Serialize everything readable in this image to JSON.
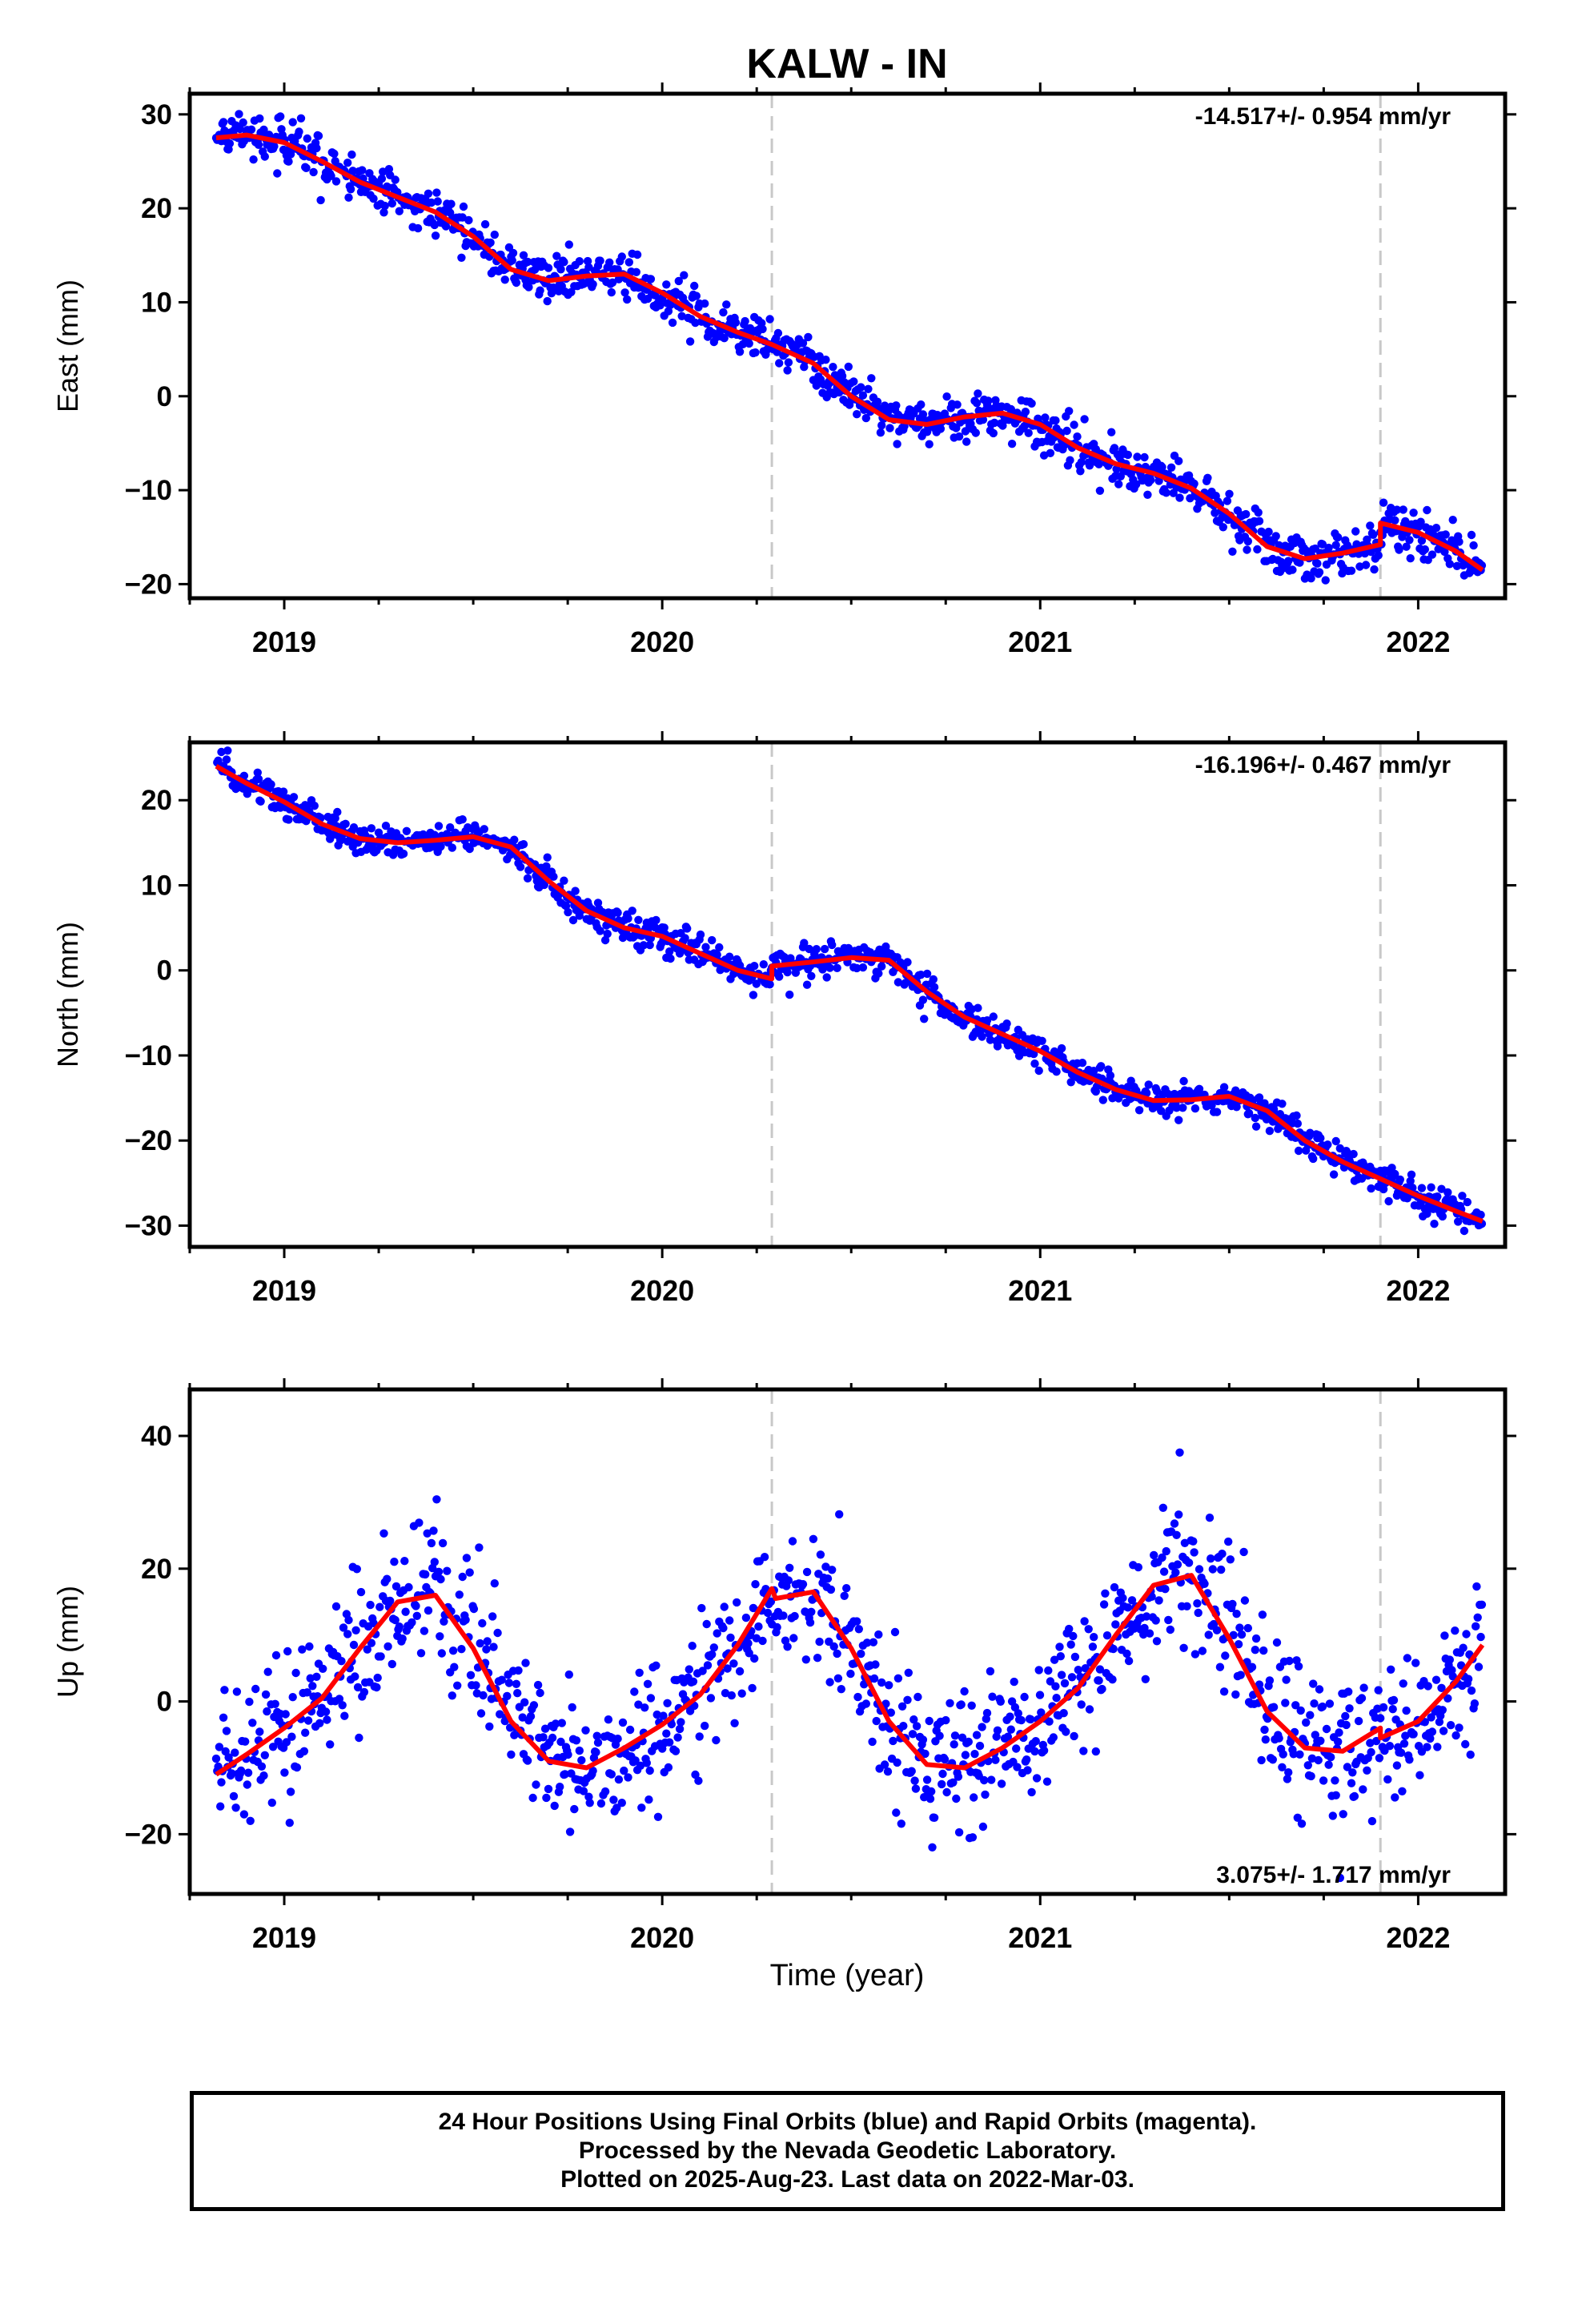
{
  "title": "KALW - IN",
  "xlabel": "Time (year)",
  "colors": {
    "data": "#0000ff",
    "model": "#ff0000",
    "event_line": "#c8c8c8",
    "axis": "#000000"
  },
  "footer": {
    "line1": "24 Hour Positions Using Final Orbits (blue) and Rapid Orbits (magenta).",
    "line2": "Processed by the Nevada Geodetic Laboratory.",
    "line3": "Plotted on 2025-Aug-23. Last data on 2022-Mar-03."
  },
  "chart_data": [
    {
      "type": "scatter",
      "component": "East",
      "ylabel": "East (mm)",
      "rate_text": "-14.517+/- 0.954 mm/yr",
      "rate_position": "top-right",
      "xlim": [
        2018.75,
        2022.23
      ],
      "ylim": [
        -21.5,
        32.2
      ],
      "xticks": [
        2019,
        2020,
        2021,
        2022
      ],
      "yticks": [
        -20,
        -10,
        0,
        10,
        20,
        30
      ],
      "event_lines": [
        2020.29,
        2021.9
      ],
      "data_range": [
        2018.82,
        2022.17
      ],
      "scatter_noise_mm": 1.2,
      "model_fit": {
        "x": [
          2018.82,
          2018.9,
          2019.0,
          2019.1,
          2019.2,
          2019.3,
          2019.4,
          2019.5,
          2019.6,
          2019.7,
          2019.8,
          2019.9,
          2020.0,
          2020.1,
          2020.2,
          2020.29,
          2020.4,
          2020.5,
          2020.6,
          2020.7,
          2020.8,
          2020.9,
          2021.0,
          2021.1,
          2021.2,
          2021.3,
          2021.4,
          2021.5,
          2021.6,
          2021.7,
          2021.8,
          2021.9,
          2021.9,
          2022.0,
          2022.1,
          2022.17
        ],
        "y": [
          27.5,
          27.8,
          27.0,
          25.0,
          22.8,
          21.2,
          19.6,
          17.0,
          13.5,
          12.3,
          12.8,
          13.0,
          11.0,
          8.5,
          6.8,
          5.5,
          3.5,
          0.0,
          -2.5,
          -3.0,
          -2.2,
          -1.8,
          -3.0,
          -5.5,
          -7.2,
          -8.2,
          -9.8,
          -12.5,
          -16.0,
          -17.3,
          -16.7,
          -15.8,
          -13.5,
          -14.5,
          -16.5,
          -18.5
        ]
      }
    },
    {
      "type": "scatter",
      "component": "North",
      "ylabel": "North (mm)",
      "rate_text": "-16.196+/- 0.467 mm/yr",
      "rate_position": "top-right",
      "xlim": [
        2018.75,
        2022.23
      ],
      "ylim": [
        -32.5,
        26.8
      ],
      "xticks": [
        2019,
        2020,
        2021,
        2022
      ],
      "yticks": [
        -30,
        -20,
        -10,
        0,
        10,
        20
      ],
      "event_lines": [
        2020.29,
        2021.9
      ],
      "data_range": [
        2018.82,
        2022.17
      ],
      "scatter_noise_mm": 0.9,
      "model_fit": {
        "x": [
          2018.82,
          2018.9,
          2019.0,
          2019.1,
          2019.2,
          2019.3,
          2019.4,
          2019.5,
          2019.6,
          2019.7,
          2019.8,
          2019.9,
          2020.0,
          2020.1,
          2020.2,
          2020.29,
          2020.29,
          2020.4,
          2020.5,
          2020.6,
          2020.7,
          2020.8,
          2020.9,
          2021.0,
          2021.1,
          2021.2,
          2021.3,
          2021.4,
          2021.5,
          2021.6,
          2021.7,
          2021.8,
          2021.9,
          2022.0,
          2022.1,
          2022.17
        ],
        "y": [
          24.0,
          22.0,
          19.8,
          17.2,
          15.5,
          15.0,
          15.3,
          15.7,
          14.5,
          10.5,
          7.0,
          5.0,
          4.0,
          2.0,
          0.0,
          -1.0,
          0.5,
          1.0,
          1.5,
          1.2,
          -2.5,
          -5.5,
          -7.5,
          -9.5,
          -12.0,
          -14.0,
          -15.3,
          -15.2,
          -14.8,
          -16.5,
          -20.0,
          -22.5,
          -24.5,
          -26.5,
          -28.3,
          -29.5
        ]
      }
    },
    {
      "type": "scatter",
      "component": "Up",
      "ylabel": "Up (mm)",
      "rate_text": "3.075+/- 1.717 mm/yr",
      "rate_position": "bottom-right",
      "xlim": [
        2018.75,
        2022.23
      ],
      "ylim": [
        -29.0,
        47.0
      ],
      "xticks": [
        2019,
        2020,
        2021,
        2022
      ],
      "yticks": [
        -20,
        0,
        20,
        40
      ],
      "event_lines": [
        2020.29,
        2021.9
      ],
      "data_range": [
        2018.82,
        2022.17
      ],
      "scatter_noise_mm": 5.5,
      "model_fit": {
        "x": [
          2018.82,
          2018.9,
          2019.0,
          2019.1,
          2019.2,
          2019.3,
          2019.4,
          2019.5,
          2019.6,
          2019.7,
          2019.8,
          2019.9,
          2020.0,
          2020.1,
          2020.2,
          2020.29,
          2020.3,
          2020.4,
          2020.5,
          2020.6,
          2020.7,
          2020.8,
          2020.9,
          2021.0,
          2021.1,
          2021.2,
          2021.3,
          2021.4,
          2021.5,
          2021.6,
          2021.7,
          2021.8,
          2021.9,
          2021.9,
          2022.0,
          2022.1,
          2022.17
        ],
        "y": [
          -11.0,
          -8.0,
          -4.0,
          0.5,
          8.0,
          15.0,
          16.0,
          8.0,
          -3.0,
          -9.0,
          -10.0,
          -7.0,
          -3.5,
          1.0,
          8.5,
          17.0,
          15.5,
          16.5,
          8.0,
          -3.0,
          -9.5,
          -10.0,
          -7.0,
          -3.0,
          2.0,
          10.0,
          17.5,
          19.0,
          9.5,
          -1.5,
          -7.0,
          -7.5,
          -4.0,
          -5.5,
          -3.0,
          3.0,
          8.5
        ]
      }
    }
  ]
}
